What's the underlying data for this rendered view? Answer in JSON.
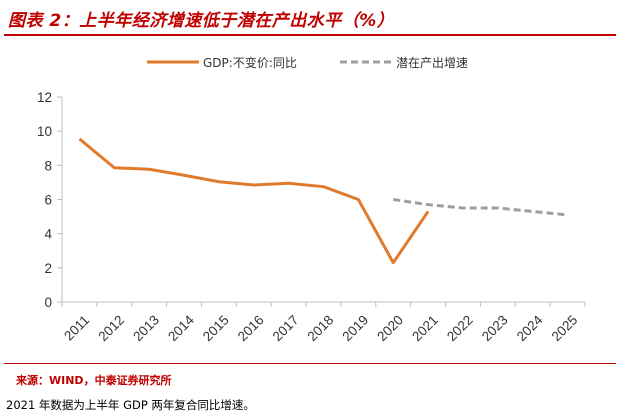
{
  "header": {
    "title": "图表 2：上半年经济增速低于潜在产出水平（%）"
  },
  "footer": {
    "source": "来源：WIND，中泰证券研究所",
    "note": "2021 年数据为上半年 GDP 两年复合同比增速。"
  },
  "chart_data": {
    "type": "line",
    "title": "",
    "xlabel": "",
    "ylabel": "",
    "categories": [
      "2011",
      "2012",
      "2013",
      "2014",
      "2015",
      "2016",
      "2017",
      "2018",
      "2019",
      "2020",
      "2021",
      "2022",
      "2023",
      "2024",
      "2025"
    ],
    "ylim": [
      0,
      12
    ],
    "yticks": [
      0,
      2,
      4,
      6,
      8,
      10,
      12
    ],
    "grid": false,
    "legend_position": "top",
    "series": [
      {
        "name": "GDP:不变价:同比",
        "color": "#e07b2e",
        "style": "solid",
        "x": [
          "2011",
          "2012",
          "2013",
          "2014",
          "2015",
          "2016",
          "2017",
          "2018",
          "2019",
          "2020",
          "2021"
        ],
        "values": [
          9.55,
          7.86,
          7.77,
          7.42,
          7.04,
          6.85,
          6.95,
          6.75,
          6.0,
          2.3,
          5.3
        ]
      },
      {
        "name": "潜在产出增速",
        "color": "#9e9e9e",
        "style": "dashed",
        "x": [
          "2020",
          "2021",
          "2022",
          "2023",
          "2024",
          "2025"
        ],
        "values": [
          6.0,
          5.7,
          5.5,
          5.5,
          5.3,
          5.1
        ]
      }
    ]
  }
}
